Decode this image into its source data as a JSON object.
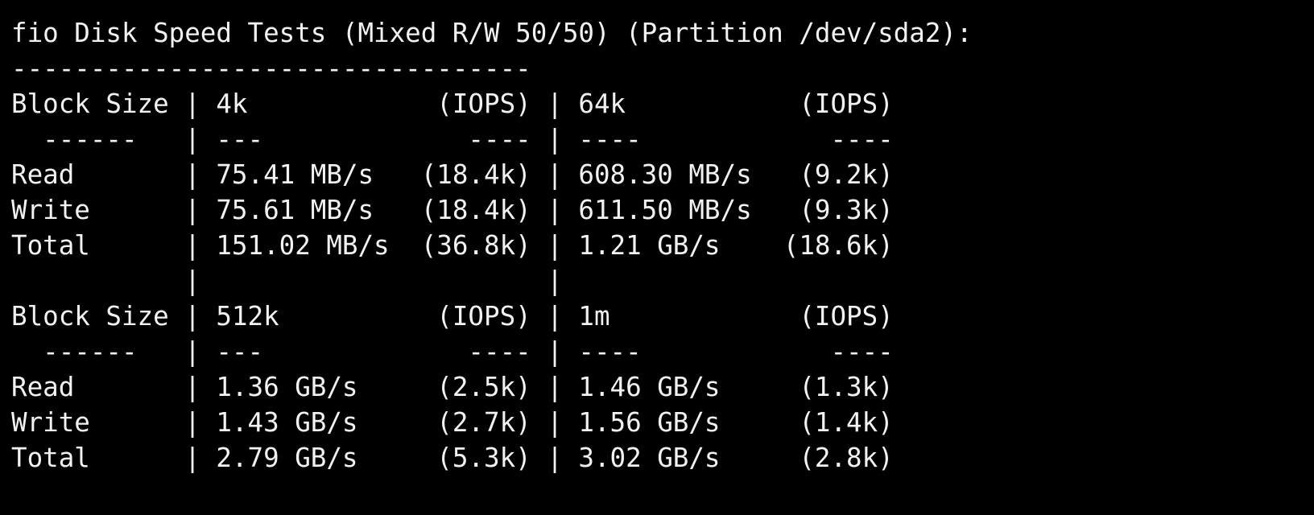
{
  "terminal": {
    "lines": [
      "fio Disk Speed Tests (Mixed R/W 50/50) (Partition /dev/sda2):",
      "---------------------------------",
      "Block Size | 4k            (IOPS) | 64k           (IOPS)",
      "  ------   | ---             ---- | ----            ----",
      "Read       | 75.41 MB/s   (18.4k) | 608.30 MB/s   (9.2k)",
      "Write      | 75.61 MB/s   (18.4k) | 611.50 MB/s   (9.3k)",
      "Total      | 151.02 MB/s  (36.8k) | 1.21 GB/s    (18.6k)",
      "           |                      |",
      "Block Size | 512k          (IOPS) | 1m            (IOPS)",
      "  ------   | ---             ---- | ----            ----",
      "Read       | 1.36 GB/s     (2.5k) | 1.46 GB/s     (1.3k)",
      "Write      | 1.43 GB/s     (2.7k) | 1.56 GB/s     (1.4k)",
      "Total      | 2.79 GB/s     (5.3k) | 3.02 GB/s     (2.8k)"
    ]
  }
}
